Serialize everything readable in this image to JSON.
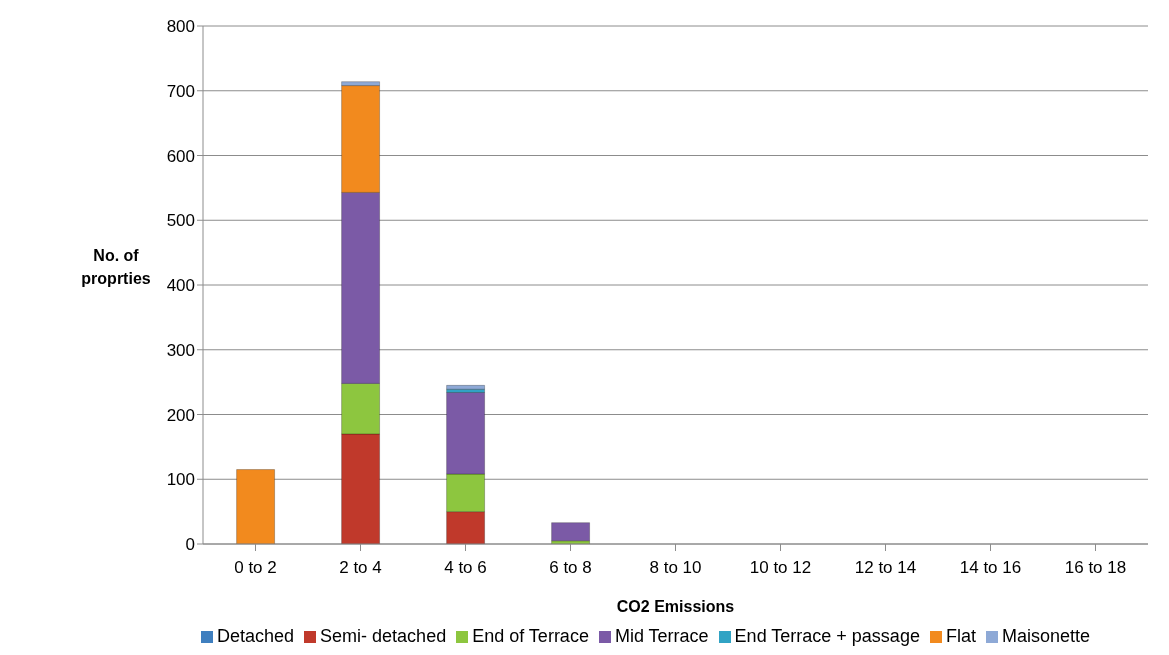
{
  "chart_data": {
    "type": "bar",
    "stacked": true,
    "xlabel": "CO2 Emissions",
    "ylabel": "No. of proprties",
    "categories": [
      "0 to 2",
      "2 to 4",
      "4 to 6",
      "6 to 8",
      "8 to 10",
      "10 to 12",
      "12 to 14",
      "14 to 16",
      "16 to 18"
    ],
    "series": [
      {
        "name": "Detached",
        "color": "#3f7fbf",
        "values": [
          0,
          0,
          0,
          0,
          0,
          0,
          0,
          0,
          0
        ]
      },
      {
        "name": "Semi- detached",
        "color": "#c0392b",
        "values": [
          0,
          170,
          50,
          0,
          0,
          0,
          0,
          0,
          0
        ]
      },
      {
        "name": "End of Terrace",
        "color": "#8dc63f",
        "values": [
          0,
          78,
          58,
          5,
          0,
          0,
          0,
          0,
          0
        ]
      },
      {
        "name": "Mid Terrace",
        "color": "#7b5aa6",
        "values": [
          0,
          295,
          126,
          28,
          0,
          0,
          0,
          0,
          0
        ]
      },
      {
        "name": "End Terrace + passage",
        "color": "#31a3c4",
        "values": [
          0,
          0,
          5,
          0,
          0,
          0,
          0,
          0,
          0
        ]
      },
      {
        "name": "Flat",
        "color": "#f28a1e",
        "values": [
          115,
          165,
          0,
          0,
          0,
          0,
          0,
          0,
          0
        ]
      },
      {
        "name": "Maisonette",
        "color": "#8ea9d6",
        "values": [
          0,
          6,
          6,
          0,
          0,
          0,
          0,
          0,
          0
        ]
      }
    ],
    "ylim": [
      0,
      800
    ],
    "yticks": [
      0,
      100,
      200,
      300,
      400,
      500,
      600,
      700,
      800
    ],
    "grid": "y",
    "legend": "bottom"
  }
}
